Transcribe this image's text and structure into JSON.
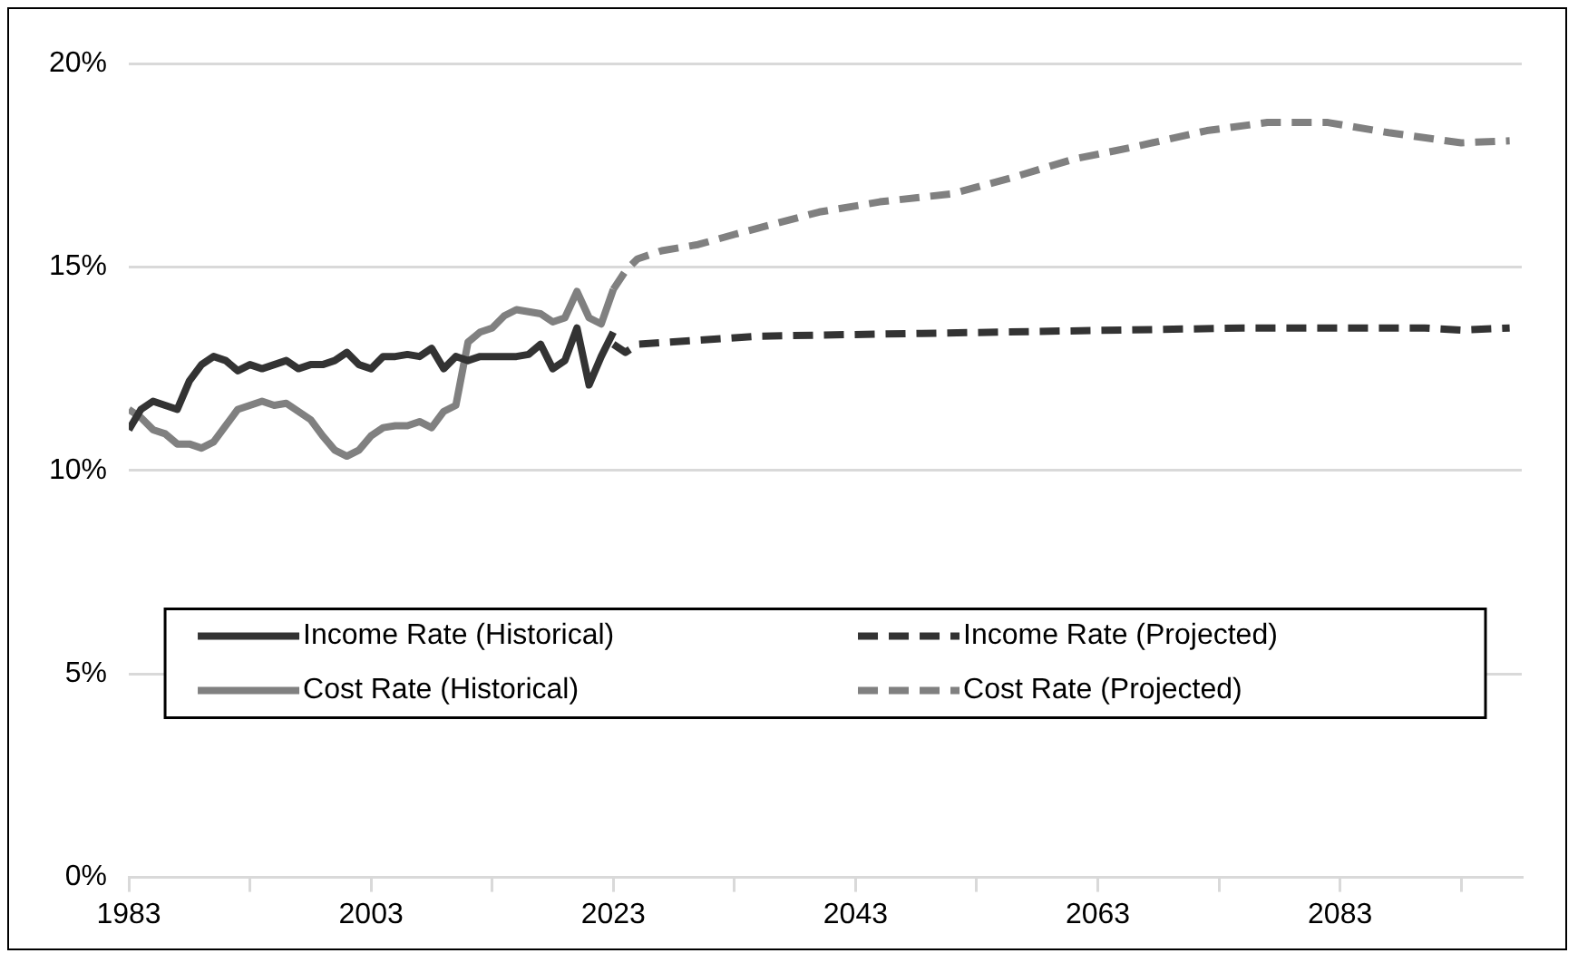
{
  "chart_data": {
    "type": "line",
    "xlim": [
      1983,
      2098
    ],
    "ylim": [
      0,
      20
    ],
    "xticks": [
      1983,
      {
        "value": 1993,
        "label": null
      },
      2003,
      {
        "value": 2013,
        "label": null
      },
      2023,
      {
        "value": 2033,
        "label": null
      },
      2043,
      {
        "value": 2053,
        "label": null
      },
      2063,
      {
        "value": 2073,
        "label": null
      },
      2083,
      {
        "value": 2093,
        "label": null
      }
    ],
    "yticks": [
      {
        "value": 0,
        "label": "0%"
      },
      {
        "value": 5,
        "label": "5%"
      },
      {
        "value": 10,
        "label": "10%"
      },
      {
        "value": 15,
        "label": "15%"
      },
      {
        "value": 20,
        "label": "20%"
      }
    ],
    "grid": "y",
    "legend": "bottom",
    "marker": "none",
    "series": [
      {
        "name": "Income Rate (Historical)",
        "color": "#333333",
        "line_style": "solid",
        "x": [
          1983,
          1984,
          1985,
          1986,
          1987,
          1988,
          1989,
          1990,
          1991,
          1992,
          1993,
          1994,
          1995,
          1996,
          1997,
          1998,
          1999,
          2000,
          2001,
          2002,
          2003,
          2004,
          2005,
          2006,
          2007,
          2008,
          2009,
          2010,
          2011,
          2012,
          2013,
          2014,
          2015,
          2016,
          2017,
          2018,
          2019,
          2020,
          2021,
          2022,
          2023
        ],
        "values": [
          11.0,
          11.5,
          11.7,
          11.6,
          11.5,
          12.2,
          12.6,
          12.8,
          12.7,
          12.45,
          12.6,
          12.5,
          12.6,
          12.7,
          12.5,
          12.6,
          12.6,
          12.7,
          12.9,
          12.6,
          12.5,
          12.8,
          12.8,
          12.85,
          12.8,
          13.0,
          12.5,
          12.8,
          12.7,
          12.8,
          12.8,
          12.8,
          12.8,
          12.85,
          13.1,
          12.5,
          12.7,
          13.5,
          12.1,
          12.8,
          13.4
        ]
      },
      {
        "name": "Cost Rate (Historical)",
        "color": "#808080",
        "line_style": "solid",
        "x": [
          1983,
          1984,
          1985,
          1986,
          1987,
          1988,
          1989,
          1990,
          1991,
          1992,
          1993,
          1994,
          1995,
          1996,
          1997,
          1998,
          1999,
          2000,
          2001,
          2002,
          2003,
          2004,
          2005,
          2006,
          2007,
          2008,
          2009,
          2010,
          2011,
          2012,
          2013,
          2014,
          2015,
          2016,
          2017,
          2018,
          2019,
          2020,
          2021,
          2022,
          2023
        ],
        "values": [
          11.5,
          11.3,
          11.0,
          10.9,
          10.65,
          10.65,
          10.55,
          10.7,
          11.1,
          11.5,
          11.6,
          11.7,
          11.6,
          11.65,
          11.45,
          11.25,
          10.85,
          10.5,
          10.35,
          10.5,
          10.85,
          11.05,
          11.1,
          11.1,
          11.2,
          11.05,
          11.45,
          11.6,
          13.15,
          13.4,
          13.5,
          13.8,
          13.95,
          13.9,
          13.85,
          13.65,
          13.75,
          14.4,
          13.75,
          13.6,
          14.45
        ]
      },
      {
        "name": "Income Rate (Projected)",
        "color": "#333333",
        "line_style": "dashed",
        "x": [
          2023,
          2024,
          2025,
          2030,
          2035,
          2045,
          2055,
          2065,
          2075,
          2090,
          2093,
          2097
        ],
        "values": [
          13.1,
          12.9,
          13.1,
          13.2,
          13.3,
          13.35,
          13.4,
          13.45,
          13.5,
          13.5,
          13.45,
          13.5
        ]
      },
      {
        "name": "Cost Rate (Projected)",
        "color": "#808080",
        "line_style": "dashed",
        "x": [
          2023,
          2024,
          2025,
          2027,
          2030,
          2033,
          2040,
          2045,
          2051,
          2056,
          2061,
          2066,
          2072,
          2077,
          2082,
          2087,
          2093,
          2097
        ],
        "values": [
          14.45,
          14.9,
          15.2,
          15.4,
          15.55,
          15.8,
          16.35,
          16.6,
          16.8,
          17.2,
          17.65,
          17.95,
          18.35,
          18.55,
          18.55,
          18.3,
          18.05,
          18.1
        ]
      }
    ]
  }
}
